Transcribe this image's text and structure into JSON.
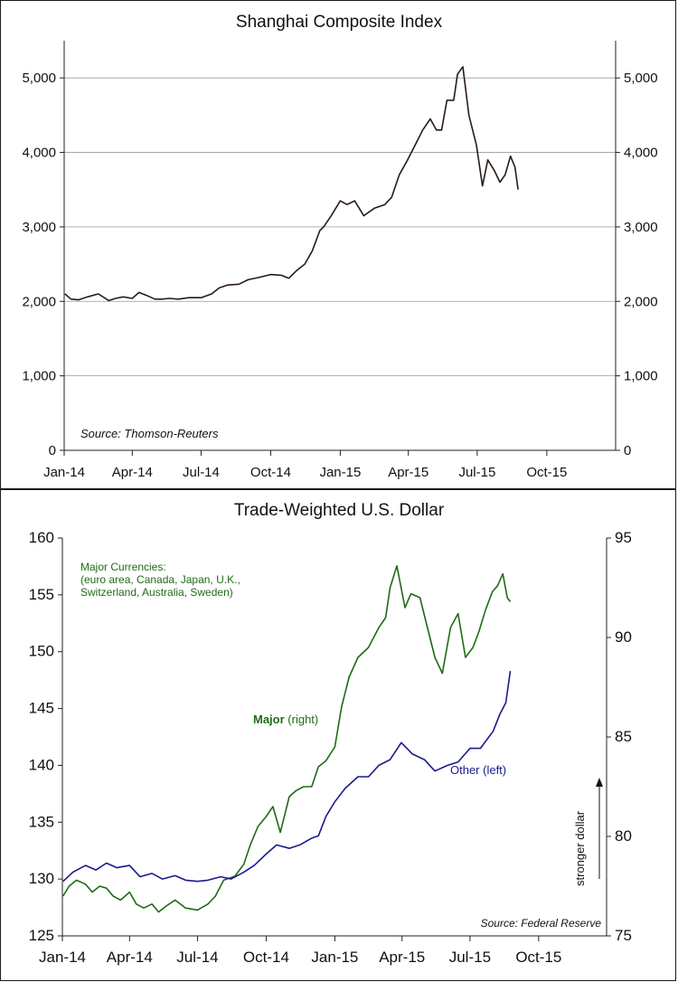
{
  "chart_data": [
    {
      "type": "line",
      "title": "Shanghai Composite Index",
      "source": "Source: Thomson-Reuters",
      "x_ticks": [
        "Jan-14",
        "Apr-14",
        "Jul-14",
        "Oct-14",
        "Jan-15",
        "Apr-15",
        "Jul-15",
        "Oct-15"
      ],
      "xlim": [
        "2014-01-01",
        "2015-12-31"
      ],
      "y_ticks": [
        "0",
        "1,000",
        "2,000",
        "3,000",
        "4,000",
        "5,000"
      ],
      "y_right_ticks": [
        "0",
        "1,000",
        "2,000",
        "3,000",
        "4,000",
        "5,000"
      ],
      "ylim": [
        0,
        5500
      ],
      "grid": true,
      "series": [
        {
          "color": "#2a1a16",
          "x": [
            "2014-01-02",
            "2014-01-10",
            "2014-01-20",
            "2014-02-01",
            "2014-02-15",
            "2014-03-01",
            "2014-03-10",
            "2014-03-20",
            "2014-04-01",
            "2014-04-10",
            "2014-04-20",
            "2014-05-01",
            "2014-05-10",
            "2014-05-20",
            "2014-06-01",
            "2014-06-15",
            "2014-07-01",
            "2014-07-15",
            "2014-07-25",
            "2014-08-05",
            "2014-08-20",
            "2014-09-01",
            "2014-09-15",
            "2014-10-01",
            "2014-10-15",
            "2014-10-25",
            "2014-11-05",
            "2014-11-15",
            "2014-11-25",
            "2014-12-05",
            "2014-12-10",
            "2014-12-20",
            "2015-01-01",
            "2015-01-10",
            "2015-01-20",
            "2015-02-01",
            "2015-02-15",
            "2015-03-01",
            "2015-03-10",
            "2015-03-20",
            "2015-03-31",
            "2015-04-10",
            "2015-04-20",
            "2015-04-30",
            "2015-05-08",
            "2015-05-15",
            "2015-05-22",
            "2015-05-31",
            "2015-06-05",
            "2015-06-12",
            "2015-06-20",
            "2015-06-30",
            "2015-07-08",
            "2015-07-15",
            "2015-07-24",
            "2015-07-31",
            "2015-08-07",
            "2015-08-14",
            "2015-08-20",
            "2015-08-24"
          ],
          "values": [
            2100,
            2030,
            2020,
            2060,
            2100,
            2010,
            2040,
            2060,
            2040,
            2120,
            2080,
            2030,
            2030,
            2040,
            2030,
            2050,
            2050,
            2100,
            2180,
            2220,
            2230,
            2290,
            2320,
            2360,
            2350,
            2310,
            2420,
            2500,
            2680,
            2950,
            3000,
            3150,
            3350,
            3300,
            3350,
            3150,
            3250,
            3300,
            3400,
            3700,
            3900,
            4100,
            4300,
            4450,
            4300,
            4300,
            4700,
            4700,
            5050,
            5150,
            4500,
            4100,
            3550,
            3900,
            3750,
            3600,
            3700,
            3950,
            3800,
            3500
          ]
        }
      ]
    },
    {
      "type": "line",
      "title": "Trade-Weighted U.S. Dollar",
      "source": "Source: Federal Reserve",
      "x_ticks": [
        "Jan-14",
        "Apr-14",
        "Jul-14",
        "Oct-14",
        "Jan-15",
        "Apr-15",
        "Jul-15",
        "Oct-15"
      ],
      "xlim": [
        "2014-01-01",
        "2015-12-31"
      ],
      "y_ticks": [
        "125",
        "130",
        "135",
        "140",
        "145",
        "150",
        "155",
        "160"
      ],
      "ylim": [
        125,
        160
      ],
      "y_right_ticks": [
        "75",
        "80",
        "85",
        "90",
        "95"
      ],
      "y_right_lim": [
        75,
        95
      ],
      "note": "Major Currencies:\n(euro area, Canada, Japan, U.K.,\nSwitzerland, Australia, Sweden)",
      "annotations": {
        "major_bold": "Major",
        "major_rest": "(right)",
        "other": "Other (left)",
        "arrow_text": "stronger dollar"
      },
      "series": [
        {
          "name": "Major (right)",
          "axis": "right",
          "color": "#1f6b16",
          "x": [
            "2014-01-02",
            "2014-01-10",
            "2014-01-20",
            "2014-02-01",
            "2014-02-10",
            "2014-02-20",
            "2014-03-01",
            "2014-03-10",
            "2014-03-20",
            "2014-04-01",
            "2014-04-10",
            "2014-04-20",
            "2014-05-01",
            "2014-05-10",
            "2014-05-20",
            "2014-06-01",
            "2014-06-15",
            "2014-07-01",
            "2014-07-15",
            "2014-07-25",
            "2014-08-05",
            "2014-08-20",
            "2014-09-01",
            "2014-09-10",
            "2014-09-20",
            "2014-10-01",
            "2014-10-10",
            "2014-10-20",
            "2014-11-01",
            "2014-11-10",
            "2014-11-20",
            "2014-12-01",
            "2014-12-10",
            "2014-12-20",
            "2015-01-01",
            "2015-01-10",
            "2015-01-20",
            "2015-02-01",
            "2015-02-15",
            "2015-03-01",
            "2015-03-10",
            "2015-03-16",
            "2015-03-25",
            "2015-04-05",
            "2015-04-13",
            "2015-04-25",
            "2015-05-05",
            "2015-05-15",
            "2015-05-25",
            "2015-06-05",
            "2015-06-15",
            "2015-06-25",
            "2015-07-05",
            "2015-07-13",
            "2015-07-22",
            "2015-07-31",
            "2015-08-07",
            "2015-08-14",
            "2015-08-20",
            "2015-08-24"
          ],
          "values": [
            77.0,
            77.5,
            77.8,
            77.6,
            77.2,
            77.5,
            77.4,
            77.0,
            76.8,
            77.2,
            76.6,
            76.4,
            76.6,
            76.2,
            76.5,
            76.8,
            76.4,
            76.3,
            76.6,
            77.0,
            77.8,
            78.0,
            78.6,
            79.6,
            80.5,
            81.0,
            81.5,
            80.2,
            82.0,
            82.3,
            82.5,
            82.5,
            83.5,
            83.8,
            84.5,
            86.5,
            88.0,
            89.0,
            89.5,
            90.5,
            91.0,
            92.5,
            93.6,
            91.5,
            92.2,
            92.0,
            90.5,
            89.0,
            88.2,
            90.5,
            91.2,
            89.0,
            89.5,
            90.3,
            91.4,
            92.3,
            92.6,
            93.2,
            92.0,
            91.8
          ]
        },
        {
          "name": "Other (left)",
          "axis": "left",
          "color": "#1a1a8c",
          "x": [
            "2014-01-02",
            "2014-01-15",
            "2014-02-01",
            "2014-02-15",
            "2014-03-01",
            "2014-03-15",
            "2014-04-01",
            "2014-04-15",
            "2014-05-01",
            "2014-05-15",
            "2014-06-01",
            "2014-06-15",
            "2014-07-01",
            "2014-07-15",
            "2014-08-01",
            "2014-08-15",
            "2014-09-01",
            "2014-09-15",
            "2014-10-01",
            "2014-10-15",
            "2014-11-01",
            "2014-11-15",
            "2014-12-01",
            "2014-12-10",
            "2014-12-20",
            "2015-01-01",
            "2015-01-15",
            "2015-02-01",
            "2015-02-15",
            "2015-03-01",
            "2015-03-16",
            "2015-03-31",
            "2015-04-15",
            "2015-05-01",
            "2015-05-15",
            "2015-06-01",
            "2015-06-15",
            "2015-07-01",
            "2015-07-15",
            "2015-08-01",
            "2015-08-10",
            "2015-08-18",
            "2015-08-24"
          ],
          "values": [
            129.8,
            130.6,
            131.2,
            130.8,
            131.4,
            131.0,
            131.2,
            130.2,
            130.5,
            130.0,
            130.3,
            129.9,
            129.8,
            129.9,
            130.2,
            130.0,
            130.6,
            131.2,
            132.2,
            133.0,
            132.7,
            133.0,
            133.6,
            133.8,
            135.5,
            136.8,
            138.0,
            139.0,
            139.0,
            140.0,
            140.5,
            142.0,
            141.0,
            140.5,
            139.5,
            140.0,
            140.3,
            141.5,
            141.5,
            143.0,
            144.5,
            145.5,
            148.3
          ]
        }
      ]
    }
  ]
}
